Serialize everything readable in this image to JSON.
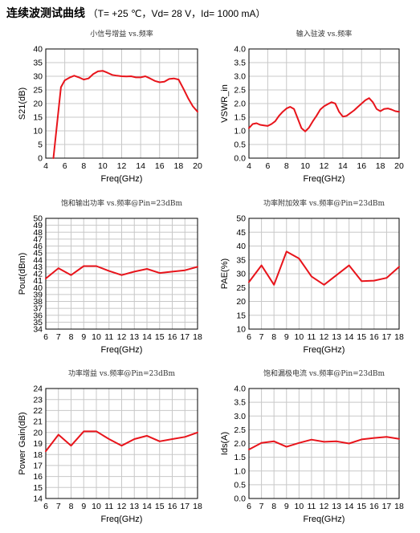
{
  "header": {
    "title": "连续波测试曲线",
    "conditions": "（T= +25 ℃，Vd= 28 V，Id= 1000 mA）"
  },
  "colors": {
    "series": "#e8141b",
    "grid": "#c8c8c8",
    "axis": "#000000"
  },
  "chart_data": [
    {
      "type": "line",
      "title": "小信号增益 vs.频率",
      "xlabel": "Freq(GHz)",
      "ylabel": "S21(dB)",
      "xlim": [
        4,
        20
      ],
      "ylim": [
        0,
        40
      ],
      "xticks": [
        4,
        6,
        8,
        10,
        12,
        14,
        16,
        18,
        20
      ],
      "yticks": [
        0,
        5,
        10,
        15,
        20,
        25,
        30,
        35,
        40
      ],
      "grid": true,
      "series": [
        {
          "x": [
            4.8,
            5.2,
            5.6,
            6.0,
            6.5,
            7.0,
            7.5,
            8.0,
            8.5,
            9.0,
            9.5,
            10.0,
            10.5,
            11.0,
            11.5,
            12.0,
            12.5,
            13.0,
            13.5,
            14.0,
            14.5,
            15.0,
            15.5,
            16.0,
            16.5,
            17.0,
            17.5,
            18.0,
            18.5,
            19.0,
            19.5,
            20.0
          ],
          "y": [
            0,
            13,
            26,
            28.5,
            29.5,
            30.2,
            29.6,
            28.8,
            29.2,
            30.8,
            31.8,
            32.0,
            31.3,
            30.5,
            30.2,
            30.0,
            29.9,
            30.0,
            29.6,
            29.6,
            30.0,
            29.2,
            28.3,
            27.8,
            28.0,
            29.0,
            29.2,
            28.8,
            25.5,
            22.0,
            19.0,
            17.0
          ]
        }
      ]
    },
    {
      "type": "line",
      "title": "输入驻波 vs.频率",
      "xlabel": "Freq(GHz)",
      "ylabel": "VSWR_in",
      "xlim": [
        4,
        20
      ],
      "ylim": [
        0,
        4
      ],
      "xticks": [
        4,
        6,
        8,
        10,
        12,
        14,
        16,
        18,
        20
      ],
      "yticks": [
        "0.0",
        "0.5",
        "1.0",
        "1.5",
        "2.0",
        "2.5",
        "3.0",
        "3.5",
        "4.0"
      ],
      "grid": true,
      "series": [
        {
          "x": [
            4.0,
            4.4,
            4.8,
            5.2,
            5.6,
            6.0,
            6.4,
            6.8,
            7.2,
            7.6,
            8.0,
            8.4,
            8.8,
            9.2,
            9.6,
            10.0,
            10.4,
            10.8,
            11.2,
            11.6,
            12.0,
            12.4,
            12.8,
            13.2,
            13.6,
            14.0,
            14.4,
            14.8,
            15.2,
            15.6,
            16.0,
            16.4,
            16.8,
            17.2,
            17.6,
            18.0,
            18.4,
            18.8,
            19.2,
            19.6,
            20.0
          ],
          "y": [
            1.1,
            1.25,
            1.28,
            1.22,
            1.2,
            1.18,
            1.25,
            1.35,
            1.55,
            1.7,
            1.82,
            1.88,
            1.8,
            1.45,
            1.1,
            0.98,
            1.12,
            1.35,
            1.55,
            1.78,
            1.9,
            1.98,
            2.05,
            2.0,
            1.7,
            1.52,
            1.55,
            1.65,
            1.75,
            1.88,
            2.0,
            2.12,
            2.2,
            2.05,
            1.8,
            1.72,
            1.8,
            1.82,
            1.78,
            1.72,
            1.7
          ]
        }
      ]
    },
    {
      "type": "line",
      "title": "饱和输出功率 vs.频率@Pin=23dBm",
      "xlabel": "Freq(GHz)",
      "ylabel": "Pout(dBm)",
      "xlim": [
        6,
        18
      ],
      "ylim": [
        34,
        50
      ],
      "xticks": [
        6,
        7,
        8,
        9,
        10,
        11,
        12,
        13,
        14,
        15,
        16,
        17,
        18
      ],
      "yticks": [
        34,
        35,
        36,
        37,
        38,
        39,
        40,
        41,
        42,
        43,
        44,
        45,
        46,
        47,
        48,
        49,
        50
      ],
      "grid": true,
      "series": [
        {
          "x": [
            6,
            7,
            8,
            9,
            10,
            11,
            12,
            13,
            14,
            15,
            16,
            17,
            18
          ],
          "y": [
            41.3,
            42.8,
            41.8,
            43.1,
            43.1,
            42.4,
            41.8,
            42.3,
            42.7,
            42.1,
            42.3,
            42.5,
            43.0
          ]
        }
      ]
    },
    {
      "type": "line",
      "title": "功率附加效率 vs.频率@Pin=23dBm",
      "xlabel": "Freq(GHz)",
      "ylabel": "PAE(%)",
      "xlim": [
        6,
        18
      ],
      "ylim": [
        10,
        50
      ],
      "xticks": [
        6,
        7,
        8,
        9,
        10,
        11,
        12,
        13,
        14,
        15,
        16,
        17,
        18
      ],
      "yticks": [
        10,
        15,
        20,
        25,
        30,
        35,
        40,
        45,
        50
      ],
      "grid": true,
      "series": [
        {
          "x": [
            6,
            7,
            8,
            9,
            10,
            11,
            12,
            13,
            14,
            15,
            16,
            17,
            18
          ],
          "y": [
            27.0,
            33.0,
            26.0,
            38.0,
            35.5,
            29.0,
            26.0,
            29.5,
            33.0,
            27.3,
            27.5,
            28.5,
            32.5
          ]
        }
      ]
    },
    {
      "type": "line",
      "title": "功率增益 vs.频率@Pin=23dBm",
      "xlabel": "Freq(GHz)",
      "ylabel": "Power Gain(dB)",
      "xlim": [
        6,
        18
      ],
      "ylim": [
        14,
        24
      ],
      "xticks": [
        6,
        7,
        8,
        9,
        10,
        11,
        12,
        13,
        14,
        15,
        16,
        17,
        18
      ],
      "yticks": [
        14,
        15,
        16,
        17,
        18,
        19,
        20,
        21,
        22,
        23,
        24
      ],
      "grid": true,
      "series": [
        {
          "x": [
            6,
            7,
            8,
            9,
            10,
            11,
            12,
            13,
            14,
            15,
            16,
            17,
            18
          ],
          "y": [
            18.3,
            19.8,
            18.8,
            20.1,
            20.1,
            19.4,
            18.8,
            19.4,
            19.7,
            19.2,
            19.4,
            19.6,
            20.0
          ]
        }
      ]
    },
    {
      "type": "line",
      "title": "饱和漏极电流 vs.频率@Pin=23dBm",
      "xlabel": "Freq(GHz)",
      "ylabel": "Ids(A)",
      "xlim": [
        6,
        18
      ],
      "ylim": [
        0,
        4
      ],
      "xticks": [
        6,
        7,
        8,
        9,
        10,
        11,
        12,
        13,
        14,
        15,
        16,
        17,
        18
      ],
      "yticks": [
        "0.0",
        "0.5",
        "1.0",
        "1.5",
        "2.0",
        "2.5",
        "3.0",
        "3.5",
        "4.0"
      ],
      "grid": true,
      "series": [
        {
          "x": [
            6,
            7,
            8,
            9,
            10,
            11,
            12,
            13,
            14,
            15,
            16,
            17,
            18
          ],
          "y": [
            1.78,
            2.02,
            2.08,
            1.88,
            2.02,
            2.14,
            2.06,
            2.08,
            2.0,
            2.15,
            2.2,
            2.24,
            2.17
          ]
        }
      ]
    }
  ]
}
